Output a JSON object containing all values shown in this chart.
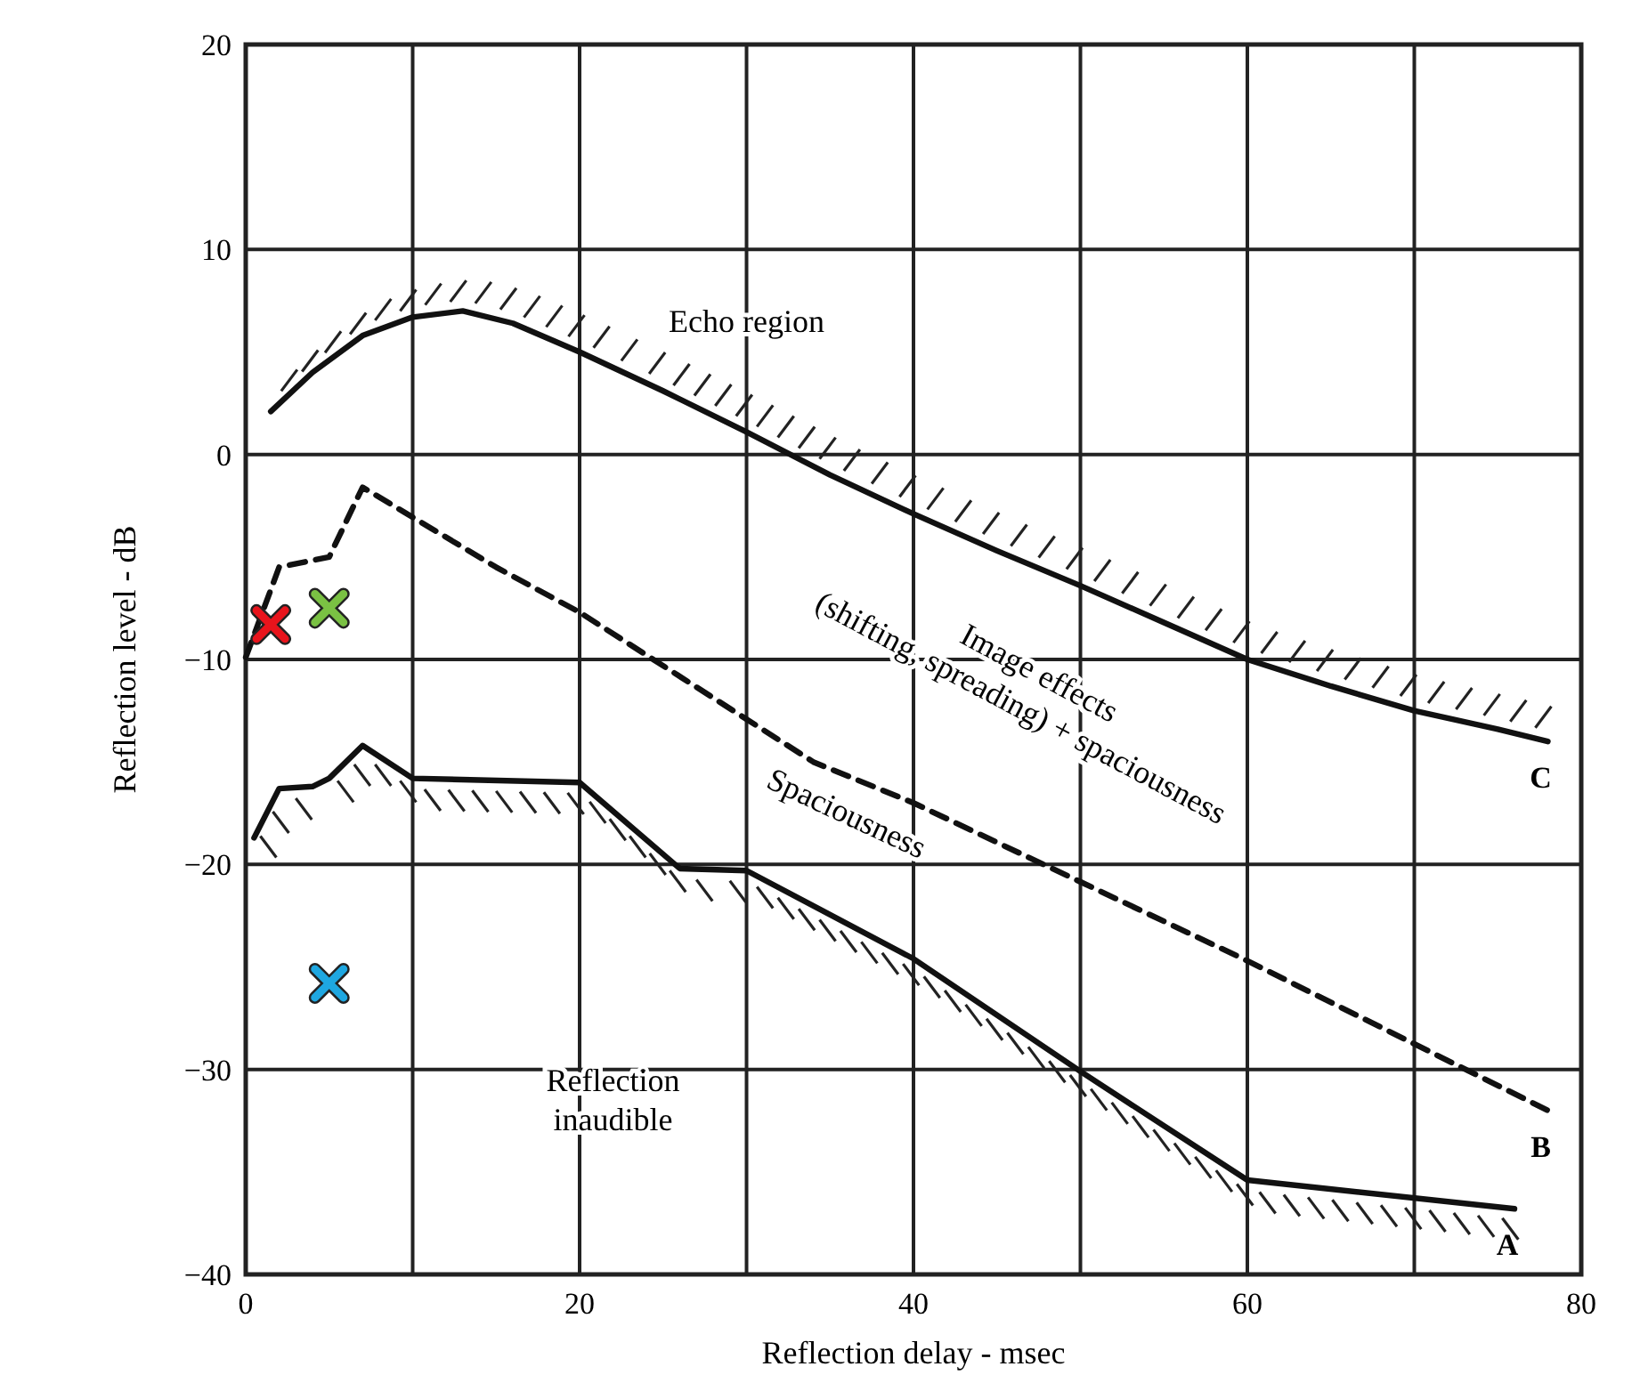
{
  "chart_data": {
    "type": "line",
    "xlabel": "Reflection delay - msec",
    "ylabel": "Reflection level - dB",
    "xlim": [
      0,
      80
    ],
    "ylim": [
      -40,
      20
    ],
    "xticks": [
      0,
      {
        "value": 10,
        "label": null
      },
      20,
      {
        "value": 30,
        "label": null
      },
      40,
      {
        "value": 50,
        "label": null
      },
      60,
      {
        "value": 70,
        "label": null
      },
      80
    ],
    "yticks": [
      -40,
      -30,
      -20,
      -10,
      0,
      10,
      20
    ],
    "grid": true,
    "legend": false,
    "marker": "none",
    "series": [
      {
        "name": "C",
        "color": "#111111",
        "line_style": "solid",
        "x": [
          1.5,
          4,
          7,
          10,
          13,
          16,
          20,
          25,
          30,
          35,
          40,
          45,
          50,
          55,
          60,
          65,
          70,
          75,
          78
        ],
        "values": [
          2.1,
          4,
          5.8,
          6.7,
          7,
          6.4,
          5,
          3.1,
          1.1,
          -1,
          -2.9,
          -4.7,
          -6.4,
          -8.2,
          -10,
          -11.3,
          -12.5,
          -13.4,
          -14
        ]
      },
      {
        "name": "B",
        "color": "#111111",
        "line_style": "dashed",
        "x": [
          0,
          2,
          5,
          7,
          15,
          20,
          34,
          40,
          60,
          78
        ],
        "values": [
          -9.9,
          -5.5,
          -5,
          -1.6,
          -5.5,
          -7.7,
          -15,
          -17,
          -24.7,
          -32
        ]
      },
      {
        "name": "A",
        "color": "#111111",
        "line_style": "solid",
        "x": [
          0.5,
          2,
          4,
          5,
          7,
          10,
          20,
          26,
          30,
          40,
          50,
          60,
          76
        ],
        "values": [
          -18.7,
          -16.3,
          -16.2,
          -15.8,
          -14.2,
          -15.8,
          -16,
          -20.2,
          -20.3,
          -24.6,
          -30.1,
          -35.4,
          -36.8
        ]
      },
      {
        "type": "scatter",
        "marker": "cross",
        "color": "#e8141c",
        "x": [
          1.5
        ],
        "values": [
          -8.3
        ]
      },
      {
        "type": "scatter",
        "marker": "cross",
        "color": "#7ac143",
        "x": [
          5
        ],
        "values": [
          -7.5
        ]
      },
      {
        "type": "scatter",
        "marker": "cross",
        "color": "#1ea7e1",
        "x": [
          5
        ],
        "values": [
          -25.8
        ]
      }
    ],
    "annotations": [
      "Echo region",
      "Image effects\n(shifting, spreading) + spaciousness",
      "Spaciousness",
      "Reflection\ninaudible"
    ]
  }
}
